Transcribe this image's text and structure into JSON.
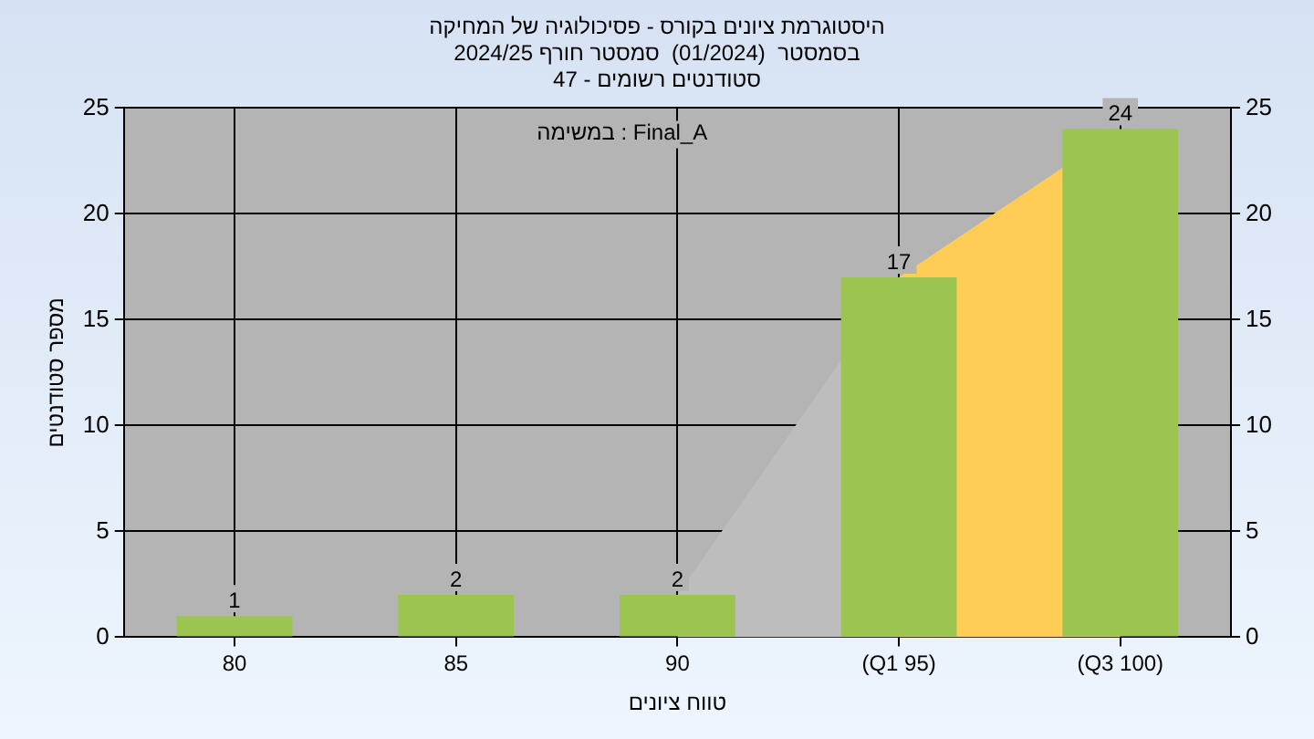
{
  "chart_data": {
    "type": "bar",
    "title": "היסטוגרמת ציונים בקורס - פסיכולוגיה של המחיקה",
    "subtitle": "בסמסטר  (01/2024)  סמסטר חורף 2024/25\nסטודנטים רשומים - 47",
    "xlabel": "טווח ציונים",
    "ylabel": "מספר סטודנטים",
    "categories": [
      "80",
      "85",
      "90",
      "(Q1 95)",
      "(Q3 100)"
    ],
    "series": [
      {
        "type": "area",
        "color": "#bdbdbd",
        "values": [
          null,
          null,
          2,
          17,
          null
        ]
      },
      {
        "type": "area",
        "color": "#ffcc55",
        "values": [
          null,
          null,
          null,
          17,
          24
        ]
      },
      {
        "color": "#9cc450",
        "values": [
          1,
          2,
          2,
          17,
          24
        ],
        "value_labels": [
          "1",
          "2",
          "2",
          "17",
          "24"
        ]
      }
    ],
    "annotations": [
      "במשימה : Final_A"
    ],
    "ylim": [
      0,
      25
    ],
    "yticks": [
      0,
      5,
      10,
      15,
      20,
      25
    ],
    "y2lim": [
      0,
      25
    ],
    "y2ticks": [
      0,
      5,
      10,
      15,
      20,
      25
    ],
    "grid": true,
    "legend": false
  }
}
